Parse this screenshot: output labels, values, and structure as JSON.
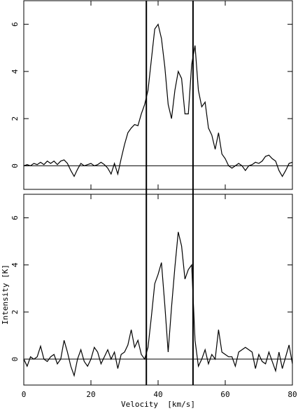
{
  "chart_data": [
    {
      "type": "line",
      "x": [
        0,
        1,
        2,
        3,
        4,
        5,
        6,
        7,
        8,
        9,
        10,
        11,
        12,
        13,
        14,
        15,
        16,
        17,
        18,
        19,
        20,
        21,
        22,
        23,
        24,
        25,
        26,
        27,
        28,
        29,
        30,
        31,
        32,
        33,
        34,
        35,
        36,
        37,
        38,
        39,
        40,
        41,
        42,
        43,
        44,
        45,
        46,
        47,
        48,
        49,
        50,
        51,
        52,
        53,
        54,
        55,
        56,
        57,
        58,
        59,
        60,
        61,
        62,
        63,
        64,
        65,
        66,
        67,
        68,
        69,
        70,
        71,
        72,
        73,
        74,
        75,
        76,
        77,
        78,
        79,
        80
      ],
      "values": [
        0.0,
        0.05,
        0.0,
        0.1,
        0.05,
        0.15,
        0.05,
        0.2,
        0.1,
        0.2,
        0.05,
        0.2,
        0.25,
        0.1,
        -0.2,
        -0.45,
        -0.15,
        0.1,
        0.0,
        0.05,
        0.1,
        0.0,
        0.05,
        0.15,
        0.05,
        -0.1,
        -0.35,
        0.1,
        -0.35,
        0.3,
        0.9,
        1.4,
        1.6,
        1.75,
        1.7,
        2.2,
        2.6,
        3.2,
        4.5,
        5.8,
        6.0,
        5.4,
        4.2,
        2.6,
        2.0,
        3.2,
        4.0,
        3.7,
        2.2,
        2.2,
        4.3,
        5.1,
        3.2,
        2.5,
        2.7,
        1.6,
        1.3,
        0.7,
        1.4,
        0.5,
        0.3,
        0.0,
        -0.1,
        0.0,
        0.1,
        0.0,
        -0.2,
        0.0,
        0.05,
        0.15,
        0.1,
        0.2,
        0.4,
        0.45,
        0.3,
        0.2,
        -0.2,
        -0.45,
        -0.2,
        0.1,
        0.15
      ],
      "color": "#000000",
      "xlim": [
        0,
        80
      ],
      "xticks": [
        0,
        20,
        40,
        60,
        80
      ],
      "ylim": [
        -1,
        7
      ],
      "yticks": [
        0,
        2,
        4,
        6
      ],
      "hlines": [
        0
      ],
      "vlines": [
        36.5,
        50.4
      ]
    },
    {
      "type": "line",
      "x": [
        0,
        1,
        2,
        3,
        4,
        5,
        6,
        7,
        8,
        9,
        10,
        11,
        12,
        13,
        14,
        15,
        16,
        17,
        18,
        19,
        20,
        21,
        22,
        23,
        24,
        25,
        26,
        27,
        28,
        29,
        30,
        31,
        32,
        33,
        34,
        35,
        36,
        37,
        38,
        39,
        40,
        41,
        42,
        43,
        44,
        45,
        46,
        47,
        48,
        49,
        50,
        51,
        52,
        53,
        54,
        55,
        56,
        57,
        58,
        59,
        60,
        61,
        62,
        63,
        64,
        65,
        66,
        67,
        68,
        69,
        70,
        71,
        72,
        73,
        74,
        75,
        76,
        77,
        78,
        79,
        80
      ],
      "values": [
        0.0,
        -0.3,
        0.1,
        0.0,
        0.1,
        0.55,
        0.0,
        -0.1,
        0.1,
        0.2,
        -0.2,
        0.0,
        0.8,
        0.3,
        -0.3,
        -0.7,
        0.0,
        0.4,
        -0.1,
        -0.3,
        0.0,
        0.5,
        0.3,
        -0.2,
        0.1,
        0.4,
        0.0,
        0.3,
        -0.4,
        0.2,
        0.3,
        0.6,
        1.25,
        0.5,
        0.8,
        0.2,
        0.0,
        0.5,
        1.8,
        3.2,
        3.6,
        4.1,
        2.3,
        0.3,
        2.2,
        3.9,
        5.4,
        4.8,
        3.4,
        3.8,
        4.0,
        0.8,
        -0.3,
        0.0,
        0.4,
        -0.2,
        0.2,
        0.0,
        1.25,
        0.3,
        0.2,
        0.1,
        0.1,
        -0.3,
        0.3,
        0.4,
        0.5,
        0.4,
        0.3,
        -0.4,
        0.2,
        -0.1,
        -0.2,
        0.3,
        -0.1,
        -0.5,
        0.3,
        -0.4,
        0.1,
        0.6,
        -0.2
      ],
      "color": "#000000",
      "xlim": [
        0,
        80
      ],
      "xticks": [
        0,
        20,
        40,
        60,
        80
      ],
      "ylim": [
        -1.1,
        7
      ],
      "yticks": [
        0,
        2,
        4,
        6
      ],
      "hlines": [
        0
      ],
      "xlabel": "Velocity  [km/s]",
      "ylabel": "Intensity [K]"
    }
  ]
}
